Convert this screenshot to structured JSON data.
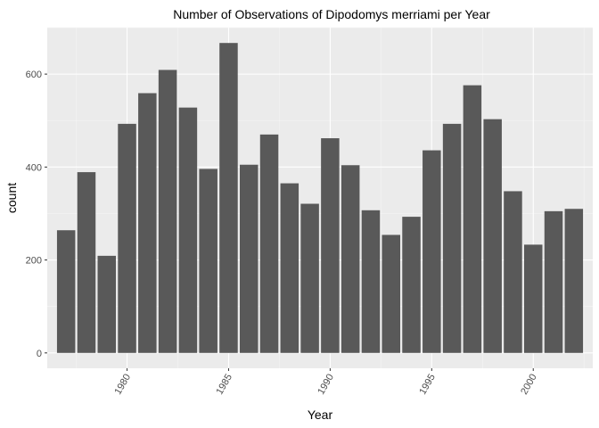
{
  "chart_data": {
    "type": "bar",
    "title": "Number of Observations of Dipodomys merriami per Year",
    "xlabel": "Year",
    "ylabel": "count",
    "x": [
      1977,
      1978,
      1979,
      1980,
      1981,
      1982,
      1983,
      1984,
      1985,
      1986,
      1987,
      1988,
      1989,
      1990,
      1991,
      1992,
      1993,
      1994,
      1995,
      1996,
      1997,
      1998,
      1999,
      2000,
      2001,
      2002
    ],
    "values": [
      264,
      389,
      209,
      493,
      559,
      609,
      528,
      396,
      667,
      405,
      470,
      365,
      321,
      462,
      404,
      307,
      254,
      293,
      436,
      493,
      576,
      503,
      348,
      233,
      305,
      310
    ],
    "xlim": [
      1976.07,
      2002.93
    ],
    "ylim": [
      -33,
      700
    ],
    "x_ticks": [
      1980,
      1985,
      1990,
      1995,
      2000
    ],
    "x_tick_labels": [
      "1980",
      "1985",
      "1990",
      "1995",
      "2000"
    ],
    "y_ticks": [
      0,
      200,
      400,
      600
    ],
    "y_tick_labels": [
      "0",
      "200",
      "400",
      "600"
    ],
    "grid": true,
    "colors": {
      "bar": "#595959",
      "panel_background": "#ebebeb",
      "grid_major": "#ffffff",
      "grid_minor": "#f5f5f5"
    }
  }
}
